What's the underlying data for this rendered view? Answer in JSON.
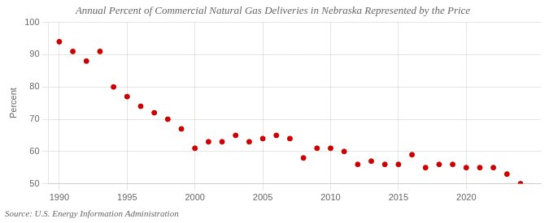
{
  "chart_data": {
    "type": "scatter",
    "title": "Annual Percent of Commercial Natural Gas Deliveries in Nebraska Represented by the Price",
    "ylabel": "Percent",
    "annotation": "Source: U.S. Energy Information Administration",
    "x": [
      1990,
      1991,
      1992,
      1993,
      1994,
      1995,
      1996,
      1997,
      1998,
      1999,
      2000,
      2001,
      2002,
      2003,
      2004,
      2005,
      2006,
      2007,
      2008,
      2009,
      2010,
      2011,
      2012,
      2013,
      2014,
      2015,
      2016,
      2017,
      2018,
      2019,
      2020,
      2021,
      2022,
      2023,
      2024
    ],
    "values": [
      94,
      91,
      88,
      91,
      80,
      77,
      74,
      72,
      70,
      67,
      61,
      63,
      63,
      65,
      63,
      64,
      65,
      64,
      58,
      61,
      61,
      60,
      56,
      57,
      56,
      56,
      59,
      55,
      56,
      56,
      55,
      55,
      55,
      53,
      50
    ],
    "color": "#cc0000",
    "xlim": [
      1989.2,
      2025.5
    ],
    "ylim": [
      50,
      100
    ],
    "xticks": [
      1990,
      1995,
      2000,
      2005,
      2010,
      2015,
      2020
    ],
    "yticks": [
      50,
      60,
      70,
      80,
      90,
      100
    ],
    "grid": true
  }
}
